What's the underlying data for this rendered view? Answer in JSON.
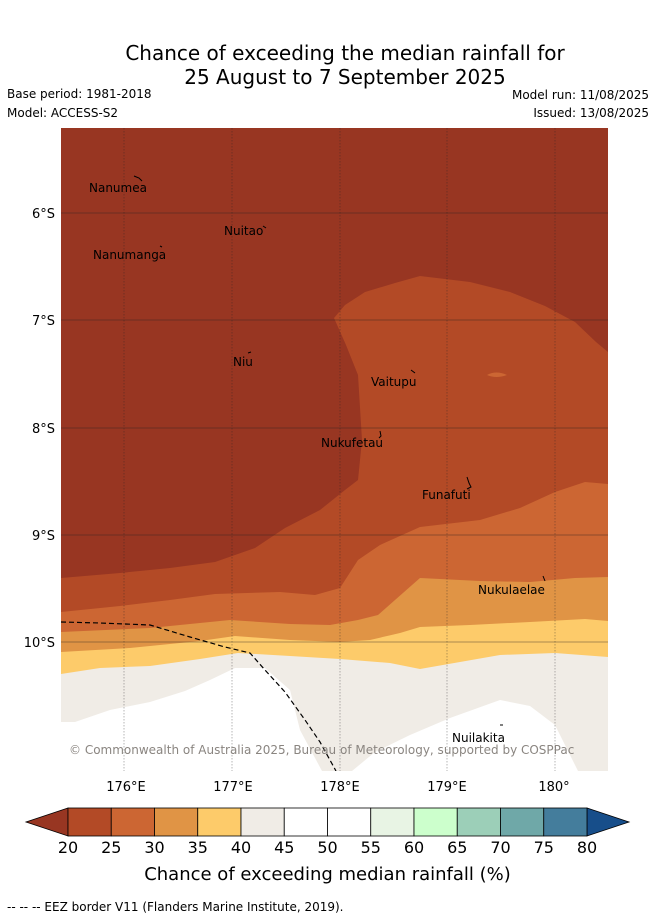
{
  "header": {
    "title_line1": "Chance of exceeding the median rainfall for",
    "title_line2": "25 August to 7 September 2025",
    "base_period": "Base period: 1981-2018",
    "model": "Model: ACCESS-S2",
    "model_run": "Model run: 11/08/2025",
    "issued": "Issued: 13/08/2025"
  },
  "map": {
    "lon_ticks": [
      "176°E",
      "177°E",
      "178°E",
      "179°E",
      "180°"
    ],
    "lat_ticks": [
      "6°S",
      "7°S",
      "8°S",
      "9°S",
      "10°S"
    ],
    "places": [
      {
        "name": "Nanumea"
      },
      {
        "name": "Nuitao"
      },
      {
        "name": "Nanumanga"
      },
      {
        "name": "Niu"
      },
      {
        "name": "Vaitupu"
      },
      {
        "name": "Nukufetau"
      },
      {
        "name": "Funafuti"
      },
      {
        "name": "Nukulaelae"
      },
      {
        "name": "Nuilakita"
      }
    ],
    "copyright": "© Commonwealth of Australia 2025, Bureau of Meteorology, supported by COSPPac"
  },
  "colorbar": {
    "ticks": [
      "20",
      "25",
      "30",
      "35",
      "40",
      "45",
      "50",
      "55",
      "60",
      "65",
      "70",
      "75",
      "80"
    ],
    "colors": [
      "#b34a26",
      "#cc6633",
      "#e09445",
      "#fdcb6a",
      "#f0ece6",
      "#ffffff",
      "#ffffff",
      "#e8f4e4",
      "#ccffcc",
      "#9ccfb8",
      "#6fa8a8",
      "#447d9c"
    ],
    "under_color": "#983622",
    "over_color": "#174e8a",
    "label": "Chance of exceeding median rainfall (%)"
  },
  "footer": {
    "eez_note": "--  --  -- EEZ border V11 (Flanders Marine Institute, 2019)."
  }
}
